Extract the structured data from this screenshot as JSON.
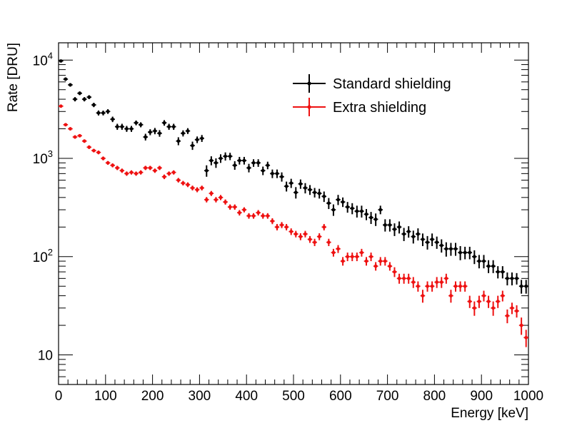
{
  "chart_data": {
    "type": "scatter",
    "xlabel": "Energy [keV]",
    "ylabel": "Rate [DRU]",
    "xlim": [
      0,
      1000
    ],
    "ylim": [
      5,
      15000
    ],
    "yscale": "log",
    "grid": false,
    "legend_position": "top-right",
    "x_ticks": [
      "0",
      "100",
      "200",
      "300",
      "400",
      "500",
      "600",
      "700",
      "800",
      "900",
      "1000"
    ],
    "y_ticks": [
      {
        "base": "10",
        "exp": ""
      },
      {
        "base": "10",
        "exp": "2"
      },
      {
        "base": "10",
        "exp": "3"
      },
      {
        "base": "10",
        "exp": "4"
      }
    ],
    "series": [
      {
        "name": "Standard shielding",
        "color": "#000000",
        "x": [
          5,
          15,
          25,
          35,
          45,
          55,
          65,
          75,
          85,
          95,
          105,
          115,
          125,
          135,
          145,
          155,
          165,
          175,
          185,
          195,
          205,
          215,
          225,
          235,
          245,
          255,
          265,
          275,
          285,
          295,
          305,
          315,
          325,
          335,
          345,
          355,
          365,
          375,
          385,
          395,
          405,
          415,
          425,
          435,
          445,
          455,
          465,
          475,
          485,
          495,
          505,
          515,
          525,
          535,
          545,
          555,
          565,
          575,
          585,
          595,
          605,
          615,
          625,
          635,
          645,
          655,
          665,
          675,
          685,
          695,
          705,
          715,
          725,
          735,
          745,
          755,
          765,
          775,
          785,
          795,
          805,
          815,
          825,
          835,
          845,
          855,
          865,
          875,
          885,
          895,
          905,
          915,
          925,
          935,
          945,
          955,
          965,
          975,
          985,
          995
        ],
        "y": [
          9800,
          6400,
          5600,
          4000,
          4600,
          4000,
          4200,
          3500,
          2900,
          2900,
          3000,
          2500,
          2100,
          2100,
          2000,
          2000,
          2300,
          2200,
          1650,
          1850,
          1900,
          1800,
          2300,
          2100,
          2100,
          1500,
          1800,
          1900,
          1350,
          1550,
          1600,
          750,
          950,
          900,
          1000,
          1050,
          1050,
          850,
          950,
          950,
          800,
          900,
          900,
          750,
          850,
          700,
          700,
          650,
          520,
          560,
          450,
          550,
          500,
          480,
          450,
          440,
          410,
          350,
          300,
          380,
          360,
          320,
          310,
          290,
          290,
          270,
          250,
          240,
          300,
          210,
          210,
          190,
          200,
          170,
          180,
          160,
          170,
          150,
          140,
          150,
          140,
          130,
          120,
          120,
          120,
          110,
          110,
          110,
          100,
          90,
          90,
          80,
          80,
          70,
          70,
          60,
          60,
          60,
          50,
          50
        ],
        "err_low": [
          300,
          250,
          230,
          200,
          200,
          200,
          190,
          180,
          170,
          165,
          165,
          160,
          150,
          150,
          140,
          140,
          130,
          130,
          130,
          130,
          140,
          140,
          150,
          150,
          150,
          140,
          130,
          130,
          130,
          120,
          130,
          100,
          100,
          100,
          100,
          100,
          90,
          85,
          85,
          85,
          80,
          80,
          80,
          75,
          75,
          70,
          70,
          70,
          60,
          60,
          60,
          60,
          60,
          55,
          50,
          50,
          50,
          45,
          40,
          45,
          40,
          40,
          40,
          40,
          40,
          35,
          35,
          35,
          30,
          30,
          30,
          28,
          28,
          26,
          24,
          24,
          24,
          22,
          22,
          22,
          20,
          20,
          20,
          18,
          18,
          18,
          16,
          16,
          16,
          14,
          14,
          12,
          12,
          10,
          10,
          9,
          9,
          8,
          8,
          8
        ],
        "err_high": [
          300,
          250,
          230,
          200,
          200,
          200,
          190,
          180,
          170,
          165,
          165,
          160,
          150,
          150,
          140,
          140,
          130,
          130,
          130,
          130,
          140,
          140,
          150,
          150,
          150,
          140,
          130,
          130,
          130,
          120,
          130,
          100,
          100,
          100,
          100,
          100,
          90,
          85,
          85,
          85,
          80,
          80,
          80,
          75,
          75,
          70,
          70,
          70,
          60,
          60,
          60,
          60,
          60,
          55,
          50,
          50,
          50,
          45,
          40,
          45,
          40,
          40,
          40,
          40,
          40,
          35,
          35,
          35,
          30,
          30,
          30,
          28,
          28,
          26,
          24,
          24,
          24,
          22,
          22,
          22,
          20,
          20,
          20,
          18,
          18,
          18,
          16,
          16,
          16,
          14,
          14,
          12,
          12,
          10,
          10,
          9,
          9,
          8,
          8,
          8
        ]
      },
      {
        "name": "Extra shielding",
        "color": "#ee1111",
        "x": [
          5,
          15,
          25,
          35,
          45,
          55,
          65,
          75,
          85,
          95,
          105,
          115,
          125,
          135,
          145,
          155,
          165,
          175,
          185,
          195,
          205,
          215,
          225,
          235,
          245,
          255,
          265,
          275,
          285,
          295,
          305,
          315,
          325,
          335,
          345,
          355,
          365,
          375,
          385,
          395,
          405,
          415,
          425,
          435,
          445,
          455,
          465,
          475,
          485,
          495,
          505,
          515,
          525,
          535,
          545,
          555,
          565,
          575,
          585,
          595,
          605,
          615,
          625,
          635,
          645,
          655,
          665,
          675,
          685,
          695,
          705,
          715,
          725,
          735,
          745,
          755,
          765,
          775,
          785,
          795,
          805,
          815,
          825,
          835,
          845,
          855,
          865,
          875,
          885,
          895,
          905,
          915,
          925,
          935,
          945,
          955,
          965,
          975,
          985,
          995
        ],
        "y": [
          3400,
          2200,
          2000,
          1650,
          1700,
          1500,
          1300,
          1200,
          1150,
          1000,
          900,
          850,
          800,
          750,
          700,
          720,
          700,
          720,
          800,
          800,
          750,
          800,
          650,
          700,
          720,
          600,
          560,
          540,
          500,
          480,
          500,
          380,
          440,
          380,
          400,
          360,
          320,
          320,
          280,
          300,
          260,
          260,
          280,
          260,
          260,
          230,
          200,
          210,
          200,
          180,
          170,
          160,
          170,
          150,
          140,
          160,
          200,
          140,
          110,
          120,
          90,
          100,
          100,
          100,
          110,
          90,
          100,
          80,
          90,
          90,
          80,
          70,
          60,
          60,
          60,
          55,
          50,
          40,
          50,
          50,
          55,
          55,
          60,
          40,
          50,
          50,
          50,
          35,
          30,
          35,
          40,
          35,
          30,
          35,
          40,
          25,
          30,
          28,
          20,
          15
        ],
        "err_low": [
          100,
          80,
          75,
          65,
          65,
          60,
          55,
          50,
          50,
          45,
          40,
          40,
          40,
          38,
          36,
          36,
          35,
          36,
          40,
          40,
          38,
          40,
          35,
          36,
          36,
          32,
          30,
          30,
          28,
          28,
          28,
          24,
          26,
          24,
          24,
          22,
          20,
          20,
          18,
          18,
          17,
          17,
          18,
          17,
          17,
          16,
          15,
          15,
          15,
          14,
          13,
          13,
          13,
          12,
          12,
          13,
          15,
          12,
          10,
          11,
          9,
          10,
          10,
          10,
          10,
          9,
          10,
          8,
          9,
          9,
          8,
          8,
          7,
          7,
          7,
          7,
          6,
          6,
          6,
          6,
          7,
          7,
          7,
          6,
          6,
          6,
          6,
          5,
          5,
          5,
          5,
          5,
          5,
          5,
          5,
          4,
          4,
          4,
          4,
          3
        ],
        "err_high": [
          100,
          80,
          75,
          65,
          65,
          60,
          55,
          50,
          50,
          45,
          40,
          40,
          40,
          38,
          36,
          36,
          35,
          36,
          40,
          40,
          38,
          40,
          35,
          36,
          36,
          32,
          30,
          30,
          28,
          28,
          28,
          24,
          26,
          24,
          24,
          22,
          20,
          20,
          18,
          18,
          17,
          17,
          18,
          17,
          17,
          16,
          15,
          15,
          15,
          14,
          13,
          13,
          13,
          12,
          12,
          13,
          15,
          12,
          10,
          11,
          9,
          10,
          10,
          10,
          10,
          9,
          10,
          8,
          9,
          9,
          8,
          8,
          7,
          7,
          7,
          7,
          6,
          6,
          6,
          6,
          7,
          7,
          7,
          6,
          6,
          6,
          6,
          5,
          5,
          5,
          5,
          5,
          5,
          5,
          5,
          4,
          4,
          4,
          4,
          3
        ]
      }
    ]
  }
}
